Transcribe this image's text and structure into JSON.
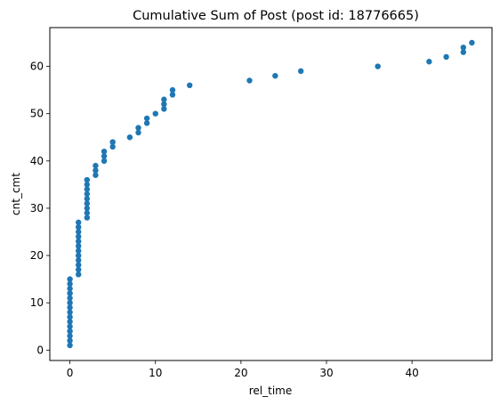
{
  "chart_data": {
    "type": "scatter",
    "title": "Cumulative Sum of Post (post id: 18776665)",
    "xlabel": "rel_time",
    "ylabel": "cnt_cmt",
    "xlim": [
      -2.35,
      49.35
    ],
    "ylim": [
      -2.2,
      68.2
    ],
    "xticks": [
      0,
      10,
      20,
      30,
      40
    ],
    "yticks": [
      0,
      10,
      20,
      30,
      40,
      50,
      60
    ],
    "grid": false,
    "marker_color": "#1f77b4",
    "series": [
      {
        "points": [
          [
            0,
            1
          ],
          [
            0,
            2
          ],
          [
            0,
            3
          ],
          [
            0,
            4
          ],
          [
            0,
            5
          ],
          [
            0,
            6
          ],
          [
            0,
            7
          ],
          [
            0,
            8
          ],
          [
            0,
            9
          ],
          [
            0,
            10
          ],
          [
            0,
            11
          ],
          [
            0,
            12
          ],
          [
            0,
            13
          ],
          [
            0,
            14
          ],
          [
            0,
            15
          ],
          [
            1,
            16
          ],
          [
            1,
            17
          ],
          [
            1,
            18
          ],
          [
            1,
            19
          ],
          [
            1,
            20
          ],
          [
            1,
            21
          ],
          [
            1,
            22
          ],
          [
            1,
            23
          ],
          [
            1,
            24
          ],
          [
            1,
            25
          ],
          [
            1,
            26
          ],
          [
            1,
            27
          ],
          [
            2,
            28
          ],
          [
            2,
            29
          ],
          [
            2,
            30
          ],
          [
            2,
            31
          ],
          [
            2,
            32
          ],
          [
            2,
            33
          ],
          [
            2,
            34
          ],
          [
            2,
            35
          ],
          [
            2,
            36
          ],
          [
            3,
            37
          ],
          [
            3,
            38
          ],
          [
            3,
            39
          ],
          [
            4,
            40
          ],
          [
            4,
            41
          ],
          [
            4,
            42
          ],
          [
            5,
            43
          ],
          [
            5,
            44
          ],
          [
            7,
            45
          ],
          [
            8,
            46
          ],
          [
            8,
            47
          ],
          [
            9,
            48
          ],
          [
            9,
            49
          ],
          [
            10,
            50
          ],
          [
            11,
            51
          ],
          [
            11,
            52
          ],
          [
            11,
            53
          ],
          [
            12,
            54
          ],
          [
            12,
            55
          ],
          [
            14,
            56
          ],
          [
            21,
            57
          ],
          [
            24,
            58
          ],
          [
            27,
            59
          ],
          [
            36,
            60
          ],
          [
            42,
            61
          ],
          [
            44,
            62
          ],
          [
            46,
            63
          ],
          [
            46,
            64
          ],
          [
            47,
            65
          ]
        ]
      }
    ]
  }
}
